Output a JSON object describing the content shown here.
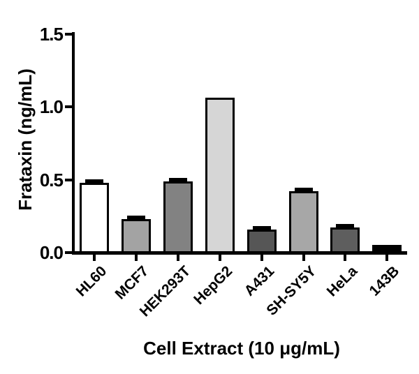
{
  "chart_data": {
    "type": "bar",
    "title": "",
    "ylabel": "Frataxin (ng/mL)",
    "xlabel": "Cell Extract (10 μg/mL)",
    "ylim": [
      0,
      1.5
    ],
    "ytick_labels": [
      "0.0",
      "0.5",
      "1.0",
      "1.5"
    ],
    "ytick_values": [
      0,
      0.5,
      1.0,
      1.5
    ],
    "categories": [
      "HL60",
      "MCF7",
      "HEK293T",
      "HepG2",
      "A431",
      "SH-SY5Y",
      "HeLa",
      "143B"
    ],
    "values": [
      0.48,
      0.23,
      0.49,
      1.06,
      0.16,
      0.42,
      0.17,
      0.055
    ],
    "errors_sd": [
      0.015,
      0.012,
      0.012,
      0,
      0.01,
      0.012,
      0.012,
      0
    ],
    "bar_fill_colors": [
      "#ffffff",
      "#a3a3a3",
      "#828282",
      "#d6d6d6",
      "#565656",
      "#a7a7a7",
      "#5e5e5e",
      "#000000"
    ],
    "bar_border_color": "#000000",
    "axis_color": "#000000",
    "background": "#ffffff",
    "grid": false,
    "legend": "none",
    "error_bar_style": "sd-cap-above-bar-top"
  }
}
